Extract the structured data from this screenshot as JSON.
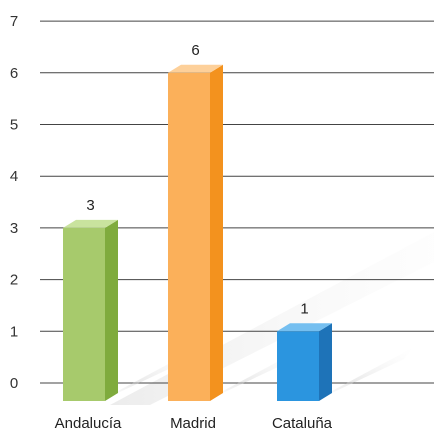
{
  "chart_data": {
    "type": "bar",
    "title": "",
    "xlabel": "",
    "ylabel": "",
    "categories": [
      "Andalucía",
      "Madrid",
      "Cataluña"
    ],
    "values": [
      3,
      6,
      1
    ],
    "data_labels": [
      "3",
      "6",
      "1"
    ],
    "ylim": [
      0,
      7
    ],
    "yticks": [
      "0",
      "1",
      "2",
      "3",
      "4",
      "5",
      "6",
      "7"
    ],
    "grid": true,
    "style": "3d-column",
    "colors": {
      "Andalucía": {
        "front": "#a7ca6c",
        "side": "#7fab3d",
        "top": "#c9e39e"
      },
      "Madrid": {
        "front": "#fbb05a",
        "side": "#f3921e",
        "top": "#fdd09a"
      },
      "Cataluña": {
        "front": "#2b95df",
        "side": "#1e73b8",
        "top": "#75bff0"
      }
    },
    "gridline_color": "#444444",
    "tick_label_color": "#333333"
  }
}
